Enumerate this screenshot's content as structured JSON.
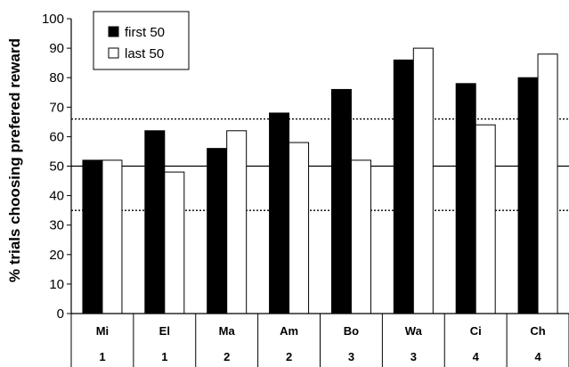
{
  "chart_data": {
    "type": "bar",
    "title": "",
    "xlabel": "",
    "ylabel": "% trials choosing prefered reward",
    "ylim": [
      0,
      100
    ],
    "yticks": [
      0,
      10,
      20,
      30,
      40,
      50,
      60,
      70,
      80,
      90,
      100
    ],
    "grid": false,
    "legend_position": "top-left",
    "categories": [
      "Mi",
      "El",
      "Ma",
      "Am",
      "Bo",
      "Wa",
      "Ci",
      "Ch"
    ],
    "category_groups": [
      "1",
      "1",
      "2",
      "2",
      "3",
      "3",
      "4",
      "4"
    ],
    "series": [
      {
        "name": "first 50",
        "color": "#000000",
        "values": [
          52,
          62,
          56,
          68,
          76,
          86,
          78,
          80
        ]
      },
      {
        "name": "last 50",
        "color": "#ffffff",
        "values": [
          52,
          48,
          62,
          58,
          52,
          90,
          64,
          88
        ]
      }
    ],
    "reference_lines": [
      {
        "value": 50,
        "style": "solid"
      },
      {
        "value": 66,
        "style": "dotted"
      },
      {
        "value": 35,
        "style": "dotted"
      }
    ]
  }
}
